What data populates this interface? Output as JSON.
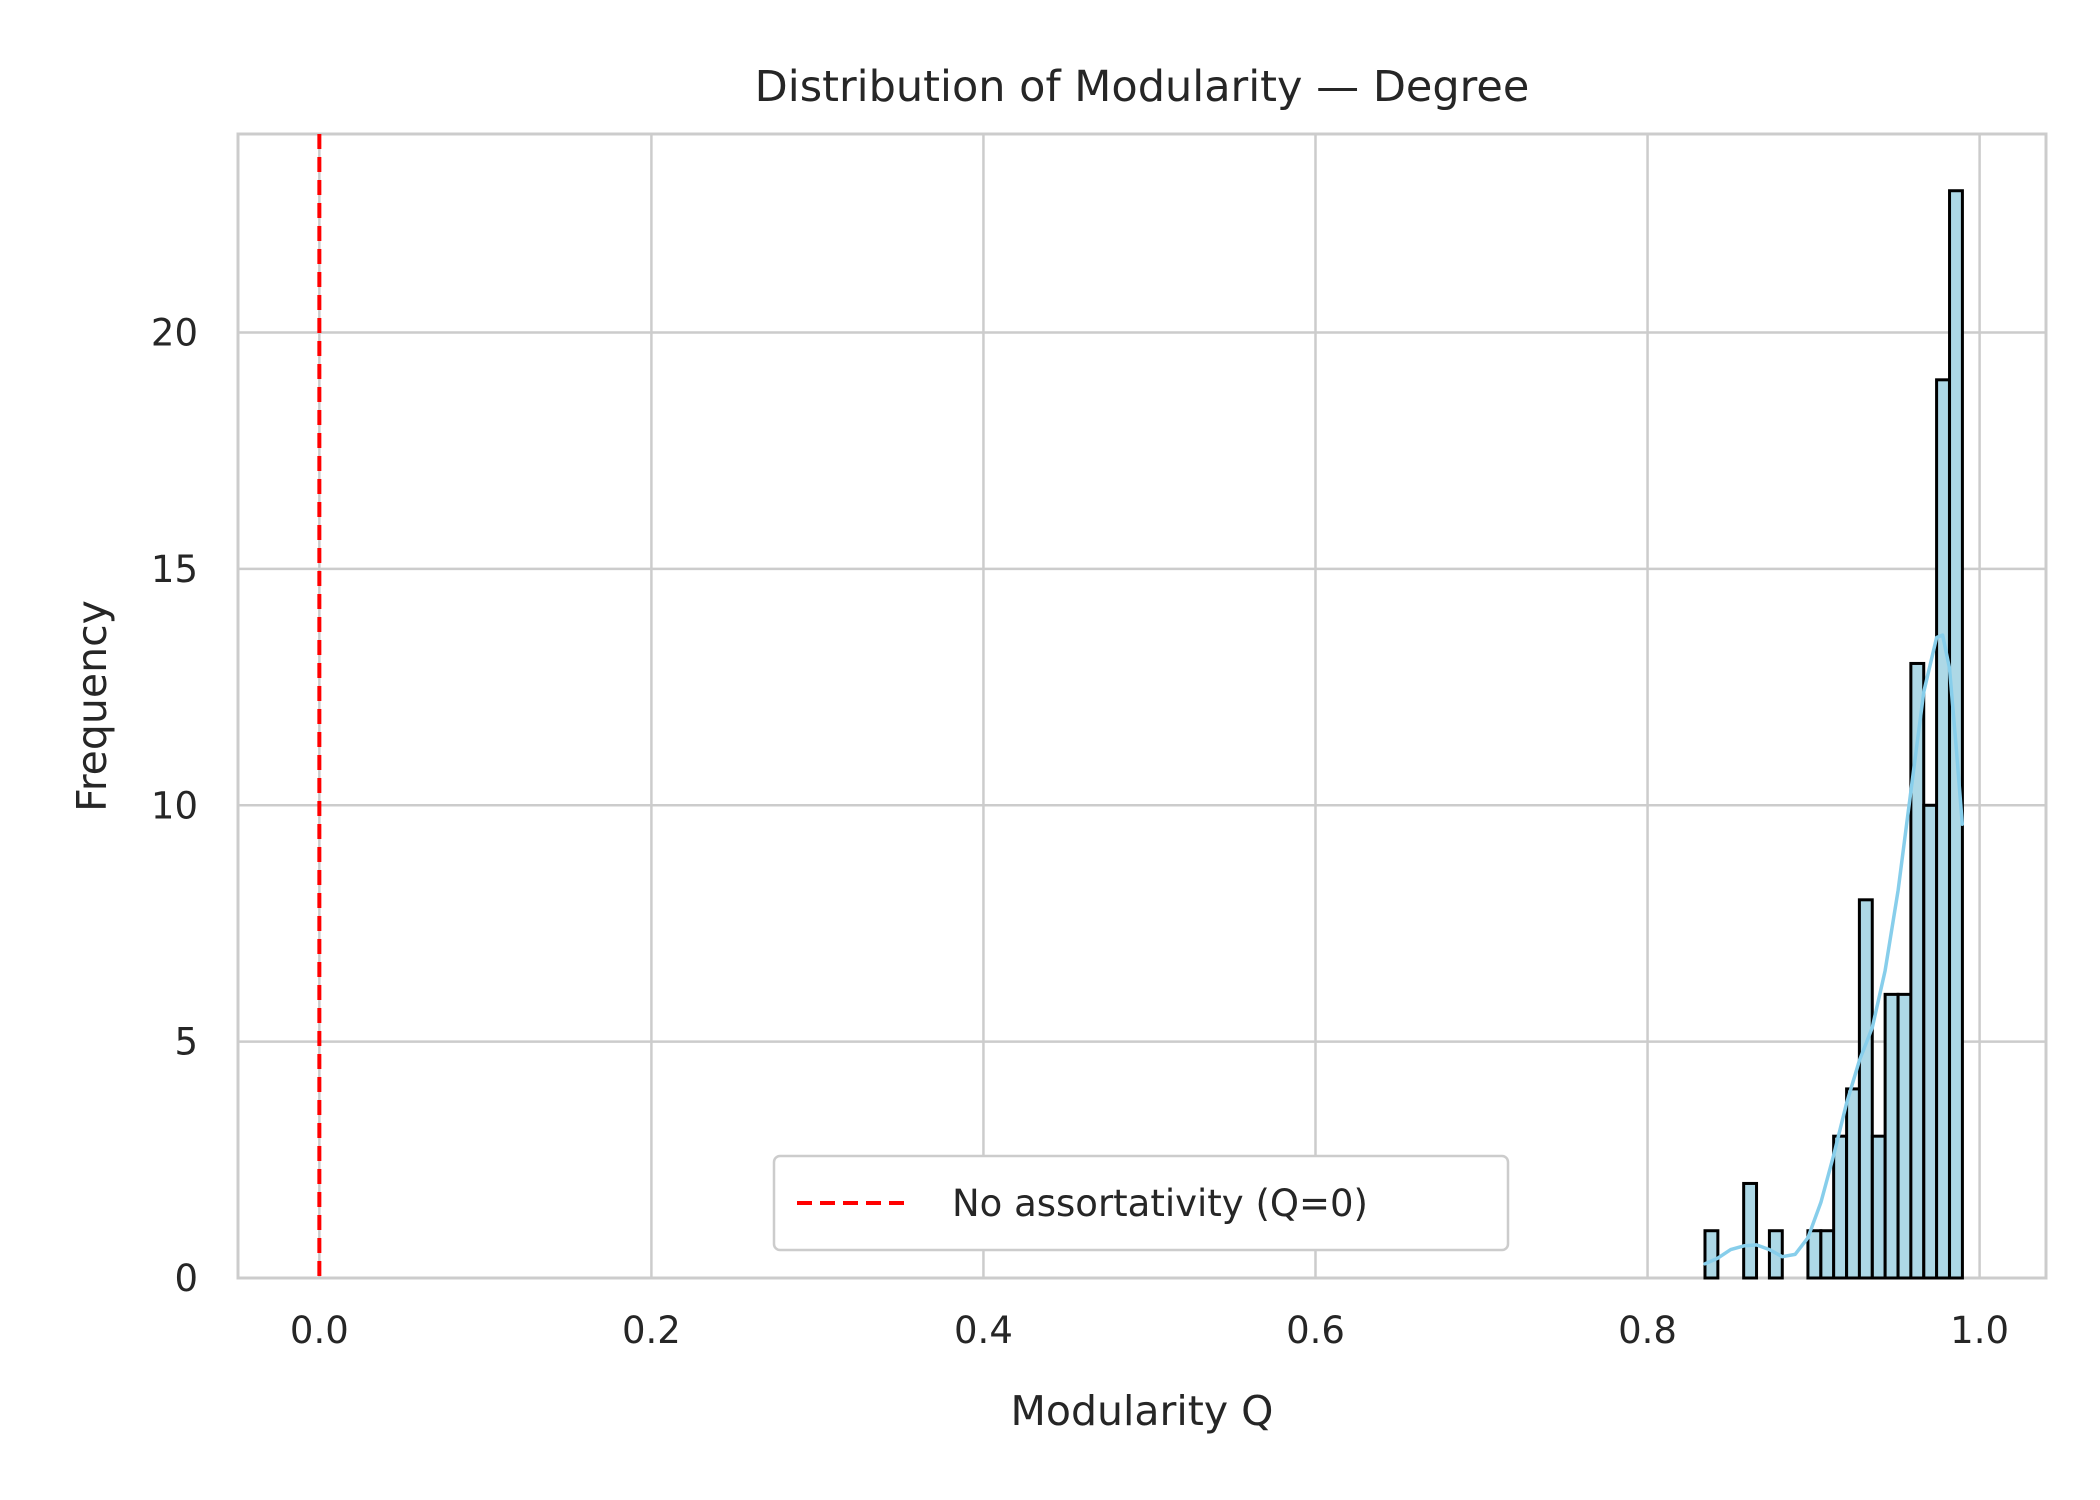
{
  "chart_data": {
    "type": "bar",
    "title": "Distribution of Modularity — Degree",
    "xlabel": "Modularity Q",
    "ylabel": "Frequency",
    "xlim": [
      -0.049,
      1.04
    ],
    "ylim": [
      0,
      24.2
    ],
    "x_ticks": [
      0.0,
      0.2,
      0.4,
      0.6,
      0.8,
      1.0
    ],
    "x_tick_labels": [
      "0.0",
      "0.2",
      "0.4",
      "0.6",
      "0.8",
      "1.0"
    ],
    "y_ticks": [
      0,
      5,
      10,
      15,
      20
    ],
    "y_tick_labels": [
      "0",
      "5",
      "10",
      "15",
      "20"
    ],
    "grid": true,
    "bin_width": 0.00775,
    "bin_starts": [
      0.8346,
      0.8424,
      0.8501,
      0.8579,
      0.8656,
      0.8734,
      0.8811,
      0.8889,
      0.8966,
      0.9044,
      0.9121,
      0.9199,
      0.9276,
      0.9354,
      0.9431,
      0.9509,
      0.9586,
      0.9664,
      0.9741,
      0.9819
    ],
    "counts": [
      1,
      0,
      0,
      2,
      0,
      1,
      0,
      0,
      1,
      1,
      3,
      4,
      8,
      3,
      6,
      6,
      13,
      10,
      19,
      23
    ],
    "bar_fill": "#add8e6",
    "bar_edge": "#000000",
    "kde": {
      "color": "#87ceeb",
      "x": [
        0.8346,
        0.8424,
        0.8501,
        0.8579,
        0.8656,
        0.8734,
        0.8811,
        0.8889,
        0.8966,
        0.9044,
        0.9121,
        0.9199,
        0.9276,
        0.9354,
        0.9431,
        0.9509,
        0.9586,
        0.9664,
        0.9741,
        0.9777,
        0.9819,
        0.986,
        0.9896
      ],
      "y": [
        0.3,
        0.42,
        0.6,
        0.68,
        0.7,
        0.6,
        0.45,
        0.5,
        0.85,
        1.6,
        2.6,
        3.7,
        4.6,
        5.3,
        6.5,
        8.2,
        10.3,
        12.4,
        13.55,
        13.6,
        12.9,
        11.2,
        9.6
      ]
    },
    "reference_line": {
      "x": 0,
      "color": "#ff0000",
      "style": "dashed",
      "label": "No assortativity (Q=0)"
    },
    "legend_position": "lower center"
  }
}
